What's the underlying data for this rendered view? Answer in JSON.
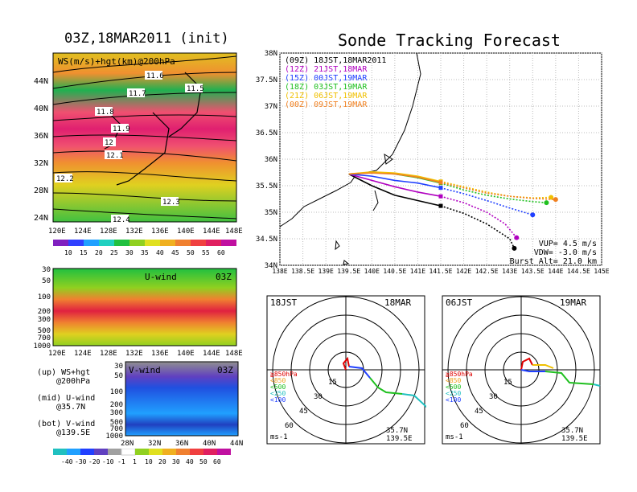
{
  "left_title": "03Z,18MAR2011 (init)",
  "right_title": "Sonde Tracking Forecast",
  "map_panel": {
    "label": "WS(m/s)+hgt(km)@200hPa",
    "y_ticks": [
      "44N",
      "40N",
      "36N",
      "32N",
      "28N",
      "24N"
    ],
    "x_ticks": [
      "120E",
      "124E",
      "128E",
      "132E",
      "136E",
      "140E",
      "144E",
      "148E"
    ],
    "contour_labels": [
      "11.6",
      "11.5",
      "11.7",
      "11.8",
      "11.9",
      "12",
      "12.1",
      "12.2",
      "12.3",
      "12.4"
    ],
    "colorbar_labels": [
      "10",
      "15",
      "20",
      "25",
      "30",
      "35",
      "40",
      "45",
      "50",
      "55",
      "60"
    ]
  },
  "u_panel": {
    "label": "U-wind",
    "time": "03Z",
    "y_ticks": [
      "30",
      "50",
      "100",
      "200",
      "300",
      "500",
      "700",
      "1000"
    ],
    "x_ticks": [
      "120E",
      "124E",
      "128E",
      "132E",
      "136E",
      "140E",
      "144E",
      "148E"
    ]
  },
  "v_panel": {
    "label": "V-wind",
    "time": "03Z",
    "y_ticks": [
      "30",
      "50",
      "100",
      "200",
      "300",
      "500",
      "700",
      "1000"
    ],
    "x_ticks": [
      "28N",
      "32N",
      "36N",
      "40N",
      "44N"
    ],
    "colorbar_labels": [
      "-40",
      "-30",
      "-20",
      "-10",
      "-1",
      "1",
      "10",
      "20",
      "30",
      "40",
      "50",
      "60"
    ]
  },
  "legend_notes": [
    {
      "l1": "(up) WS+hgt",
      "l2": "@200hPa"
    },
    {
      "l1": "(mid) U-wind",
      "l2": "@35.7N"
    },
    {
      "l1": "(bot) V-wind",
      "l2": "@139.5E"
    }
  ],
  "tracking": {
    "y_ticks": [
      "38N",
      "37.5N",
      "37N",
      "36.5N",
      "36N",
      "35.5N",
      "35N",
      "34.5N",
      "34N"
    ],
    "x_ticks": [
      "138E",
      "138.5E",
      "139E",
      "139.5E",
      "140E",
      "140.5E",
      "141E",
      "141.5E",
      "142E",
      "142.5E",
      "143E",
      "143.5E",
      "144E",
      "144.5E",
      "145E"
    ],
    "params": [
      "VUP= 4.5 m/s",
      "VDW= -3.0 m/s",
      "Burst Alt= 21.0 km"
    ],
    "launch": {
      "lon": 139.5,
      "lat": 35.72
    }
  },
  "hodographs": [
    {
      "left": "18JST",
      "right": "18MAR",
      "lat": "35.7N",
      "lon": "139.5E",
      "unit": "ms-1"
    },
    {
      "left": "06JST",
      "right": "19MAR",
      "lat": "35.7N",
      "lon": "139.5E",
      "unit": "ms-1"
    }
  ],
  "hodo_rings": [
    "15",
    "30",
    "45",
    "60"
  ],
  "hodo_legend": [
    {
      "text": "≧850hPa",
      "color": "#e00000"
    },
    {
      "text": "<850",
      "color": "#f0a020"
    },
    {
      "text": "<500",
      "color": "#20c020"
    },
    {
      "text": "<250",
      "color": "#20c0c0"
    },
    {
      "text": "<100",
      "color": "#2040ff"
    }
  ],
  "chart_data": {
    "type": "line",
    "title": "Sonde Tracking Forecast",
    "xlim": [
      138,
      145
    ],
    "ylim": [
      34,
      38
    ],
    "series": [
      {
        "name": "(09Z) 18JST,18MAR2011",
        "color": "#000000",
        "x": [
          139.5,
          140.0,
          140.5,
          141.0,
          141.5,
          142.0,
          142.5,
          143.0,
          143.1
        ],
        "y": [
          35.72,
          35.5,
          35.32,
          35.22,
          35.12,
          34.98,
          34.78,
          34.5,
          34.32
        ]
      },
      {
        "name": "(12Z) 21JST,18MAR",
        "color": "#b000c0",
        "x": [
          139.5,
          140.0,
          140.5,
          141.0,
          141.5,
          142.0,
          142.5,
          142.9,
          143.15
        ],
        "y": [
          35.72,
          35.6,
          35.48,
          35.38,
          35.3,
          35.18,
          35.0,
          34.78,
          34.52
        ]
      },
      {
        "name": "(15Z) 00JST,19MAR",
        "color": "#2040ff",
        "x": [
          139.5,
          140.0,
          140.5,
          141.0,
          141.5,
          142.0,
          142.5,
          143.0,
          143.5
        ],
        "y": [
          35.72,
          35.68,
          35.6,
          35.55,
          35.46,
          35.35,
          35.22,
          35.08,
          34.95
        ]
      },
      {
        "name": "(18Z) 03JST,19MAR",
        "color": "#20c020",
        "x": [
          139.5,
          140.0,
          140.5,
          141.0,
          141.5,
          142.0,
          142.5,
          143.0,
          143.5,
          143.8
        ],
        "y": [
          35.72,
          35.75,
          35.72,
          35.65,
          35.55,
          35.42,
          35.32,
          35.25,
          35.2,
          35.18
        ]
      },
      {
        "name": "(21Z) 06JST,19MAR",
        "color": "#f0c000",
        "x": [
          139.5,
          140.0,
          140.5,
          141.0,
          141.5,
          142.0,
          142.5,
          143.0,
          143.5,
          143.9
        ],
        "y": [
          35.72,
          35.76,
          35.74,
          35.68,
          35.58,
          35.48,
          35.38,
          35.3,
          35.27,
          35.28
        ]
      },
      {
        "name": "(00Z) 09JST,19MAR",
        "color": "#f08020",
        "x": [
          139.5,
          140.0,
          140.5,
          141.0,
          141.5,
          142.0,
          142.5,
          143.0,
          143.5,
          144.0
        ],
        "y": [
          35.72,
          35.74,
          35.72,
          35.66,
          35.56,
          35.46,
          35.36,
          35.3,
          35.26,
          35.24
        ]
      }
    ]
  }
}
